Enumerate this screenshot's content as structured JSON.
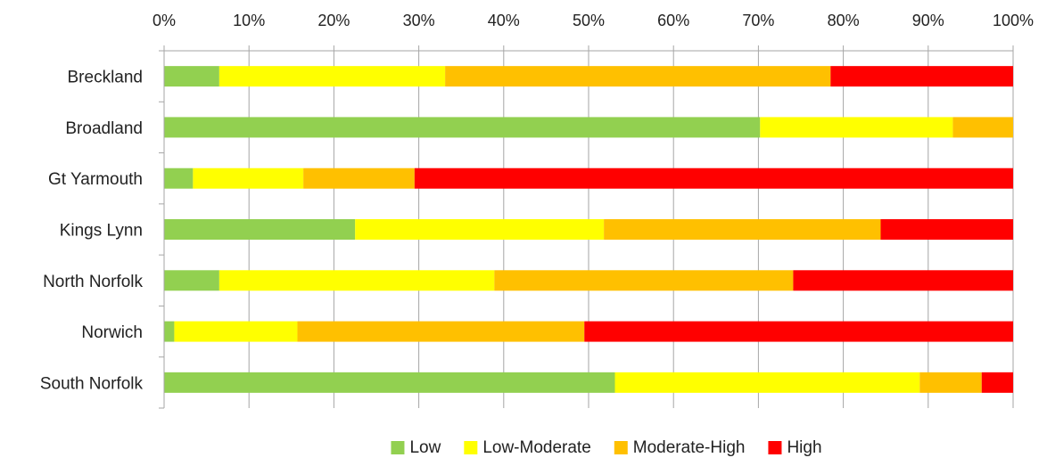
{
  "chart_data": {
    "type": "bar",
    "orientation": "horizontal",
    "stacked": "percent",
    "title": "",
    "xlabel": "",
    "ylabel": "",
    "xlim": [
      0,
      100
    ],
    "x_ticks": [
      "0%",
      "10%",
      "20%",
      "30%",
      "40%",
      "50%",
      "60%",
      "70%",
      "80%",
      "90%",
      "100%"
    ],
    "x_axis_position": "top",
    "grid": true,
    "legend_position": "bottom",
    "categories": [
      "Breckland",
      "Broadland",
      "Gt Yarmouth",
      "Kings Lynn",
      "North Norfolk",
      "Norwich",
      "South Norfolk"
    ],
    "series": [
      {
        "name": "Low",
        "color": "#92d050",
        "values": [
          6.5,
          70.2,
          3.4,
          22.5,
          6.5,
          1.2,
          53.1
        ]
      },
      {
        "name": "Low-Moderate",
        "color": "#ffff00",
        "values": [
          26.6,
          22.7,
          13.0,
          29.3,
          32.4,
          14.5,
          35.9
        ]
      },
      {
        "name": "Moderate-High",
        "color": "#ffc000",
        "values": [
          45.4,
          7.1,
          13.1,
          32.6,
          35.2,
          33.8,
          7.3
        ]
      },
      {
        "name": "High",
        "color": "#ff0000",
        "values": [
          21.5,
          0.0,
          70.5,
          15.6,
          25.9,
          50.5,
          3.7
        ]
      }
    ]
  }
}
